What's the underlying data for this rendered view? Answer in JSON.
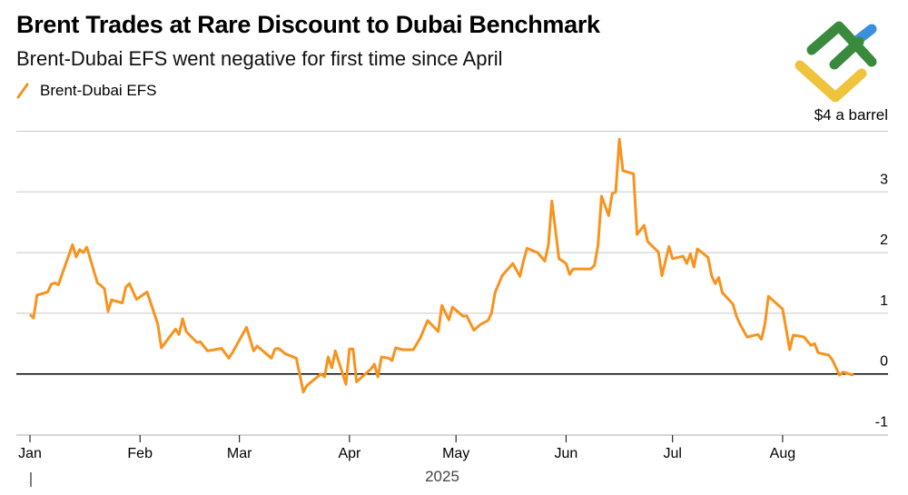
{
  "chart_data": {
    "type": "line",
    "title": "Brent Trades at Rare Discount to Dubai Benchmark",
    "subtitle": "Brent-Dubai EFS went negative for first time since April",
    "unit_label": "$4 a barrel",
    "xlabel": "2025",
    "ylabel": "",
    "ylim": [
      -1,
      4
    ],
    "yticks": [
      "-1",
      "0",
      "1",
      "2",
      "3"
    ],
    "xticks": [
      "Jan",
      "Feb",
      "Mar",
      "Apr",
      "May",
      "Jun",
      "Jul",
      "Aug"
    ],
    "grid": true,
    "legend_position": "top-left",
    "series": [
      {
        "name": "Brent-Dubai EFS",
        "color": "#f7931e",
        "points": [
          [
            "2025-01-01",
            0.98
          ],
          [
            "2025-01-02",
            0.92
          ],
          [
            "2025-01-03",
            1.3
          ],
          [
            "2025-01-06",
            1.35
          ],
          [
            "2025-01-07",
            1.48
          ],
          [
            "2025-01-08",
            1.5
          ],
          [
            "2025-01-09",
            1.47
          ],
          [
            "2025-01-13",
            2.13
          ],
          [
            "2025-01-14",
            1.93
          ],
          [
            "2025-01-15",
            2.05
          ],
          [
            "2025-01-16",
            2.0
          ],
          [
            "2025-01-17",
            2.09
          ],
          [
            "2025-01-20",
            1.5
          ],
          [
            "2025-01-21",
            1.46
          ],
          [
            "2025-01-22",
            1.4
          ],
          [
            "2025-01-23",
            1.03
          ],
          [
            "2025-01-24",
            1.22
          ],
          [
            "2025-01-27",
            1.17
          ],
          [
            "2025-01-28",
            1.43
          ],
          [
            "2025-01-29",
            1.49
          ],
          [
            "2025-01-31",
            1.23
          ],
          [
            "2025-02-03",
            1.35
          ],
          [
            "2025-02-06",
            0.82
          ],
          [
            "2025-02-07",
            0.43
          ],
          [
            "2025-02-11",
            0.74
          ],
          [
            "2025-02-12",
            0.65
          ],
          [
            "2025-02-13",
            0.91
          ],
          [
            "2025-02-14",
            0.7
          ],
          [
            "2025-02-17",
            0.52
          ],
          [
            "2025-02-18",
            0.53
          ],
          [
            "2025-02-20",
            0.38
          ],
          [
            "2025-02-24",
            0.42
          ],
          [
            "2025-02-26",
            0.26
          ],
          [
            "2025-02-27",
            0.35
          ],
          [
            "2025-03-03",
            0.77
          ],
          [
            "2025-03-05",
            0.38
          ],
          [
            "2025-03-06",
            0.46
          ],
          [
            "2025-03-10",
            0.26
          ],
          [
            "2025-03-11",
            0.41
          ],
          [
            "2025-03-12",
            0.42
          ],
          [
            "2025-03-14",
            0.33
          ],
          [
            "2025-03-17",
            0.26
          ],
          [
            "2025-03-19",
            -0.3
          ],
          [
            "2025-03-20",
            -0.19
          ],
          [
            "2025-03-24",
            0.0
          ],
          [
            "2025-03-25",
            -0.05
          ],
          [
            "2025-03-26",
            0.28
          ],
          [
            "2025-03-27",
            0.1
          ],
          [
            "2025-03-28",
            0.38
          ],
          [
            "2025-03-31",
            -0.17
          ],
          [
            "2025-04-01",
            0.41
          ],
          [
            "2025-04-02",
            0.41
          ],
          [
            "2025-04-03",
            -0.13
          ],
          [
            "2025-04-07",
            0.08
          ],
          [
            "2025-04-08",
            0.16
          ],
          [
            "2025-04-09",
            -0.05
          ],
          [
            "2025-04-10",
            0.28
          ],
          [
            "2025-04-12",
            0.26
          ],
          [
            "2025-04-13",
            0.22
          ],
          [
            "2025-04-14",
            0.43
          ],
          [
            "2025-04-16",
            0.4
          ],
          [
            "2025-04-19",
            0.4
          ],
          [
            "2025-04-21",
            0.6
          ],
          [
            "2025-04-23",
            0.88
          ],
          [
            "2025-04-26",
            0.7
          ],
          [
            "2025-04-27",
            1.13
          ],
          [
            "2025-04-29",
            0.89
          ],
          [
            "2025-04-30",
            1.1
          ],
          [
            "2025-05-03",
            0.95
          ],
          [
            "2025-05-04",
            0.96
          ],
          [
            "2025-05-06",
            0.72
          ],
          [
            "2025-05-08",
            0.82
          ],
          [
            "2025-05-10",
            0.88
          ],
          [
            "2025-05-11",
            1.0
          ],
          [
            "2025-05-12",
            1.34
          ],
          [
            "2025-05-14",
            1.62
          ],
          [
            "2025-05-17",
            1.82
          ],
          [
            "2025-05-19",
            1.61
          ],
          [
            "2025-05-20",
            1.86
          ],
          [
            "2025-05-21",
            2.07
          ],
          [
            "2025-05-24",
            2.0
          ],
          [
            "2025-05-26",
            1.86
          ],
          [
            "2025-05-27",
            2.12
          ],
          [
            "2025-05-28",
            2.85
          ],
          [
            "2025-05-30",
            1.9
          ],
          [
            "2025-06-01",
            1.82
          ],
          [
            "2025-06-02",
            1.64
          ],
          [
            "2025-06-03",
            1.73
          ],
          [
            "2025-06-08",
            1.73
          ],
          [
            "2025-06-09",
            1.79
          ],
          [
            "2025-06-10",
            2.12
          ],
          [
            "2025-06-11",
            2.93
          ],
          [
            "2025-06-13",
            2.61
          ],
          [
            "2025-06-14",
            2.97
          ],
          [
            "2025-06-15",
            3.0
          ],
          [
            "2025-06-16",
            3.87
          ],
          [
            "2025-06-17",
            3.35
          ],
          [
            "2025-06-20",
            3.3
          ],
          [
            "2025-06-21",
            2.3
          ],
          [
            "2025-06-23",
            2.45
          ],
          [
            "2025-06-24",
            2.18
          ],
          [
            "2025-06-27",
            2.01
          ],
          [
            "2025-06-28",
            1.62
          ],
          [
            "2025-06-30",
            2.1
          ],
          [
            "2025-07-01",
            1.9
          ],
          [
            "2025-07-04",
            1.94
          ],
          [
            "2025-07-05",
            1.82
          ],
          [
            "2025-07-06",
            1.98
          ],
          [
            "2025-07-07",
            1.76
          ],
          [
            "2025-07-08",
            2.06
          ],
          [
            "2025-07-11",
            1.92
          ],
          [
            "2025-07-12",
            1.62
          ],
          [
            "2025-07-13",
            1.49
          ],
          [
            "2025-07-14",
            1.59
          ],
          [
            "2025-07-15",
            1.34
          ],
          [
            "2025-07-18",
            1.15
          ],
          [
            "2025-07-19",
            0.95
          ],
          [
            "2025-07-20",
            0.82
          ],
          [
            "2025-07-22",
            0.61
          ],
          [
            "2025-07-25",
            0.65
          ],
          [
            "2025-07-26",
            0.57
          ],
          [
            "2025-07-27",
            0.82
          ],
          [
            "2025-07-28",
            1.28
          ],
          [
            "2025-08-01",
            1.07
          ],
          [
            "2025-08-02",
            0.74
          ],
          [
            "2025-08-03",
            0.4
          ],
          [
            "2025-08-04",
            0.64
          ],
          [
            "2025-08-07",
            0.61
          ],
          [
            "2025-08-09",
            0.47
          ],
          [
            "2025-08-10",
            0.5
          ],
          [
            "2025-08-11",
            0.35
          ],
          [
            "2025-08-14",
            0.31
          ],
          [
            "2025-08-15",
            0.23
          ],
          [
            "2025-08-17",
            -0.02
          ],
          [
            "2025-08-18",
            0.03
          ],
          [
            "2025-08-21",
            -0.02
          ]
        ]
      }
    ]
  },
  "logo": {
    "colors": {
      "green": "#3a8a3e",
      "yellow": "#f0c33c",
      "blue": "#3b8fdc"
    }
  },
  "colors": {
    "accent": "#f7931e",
    "grid": "#c8c8c8",
    "zero_line": "#000000"
  }
}
